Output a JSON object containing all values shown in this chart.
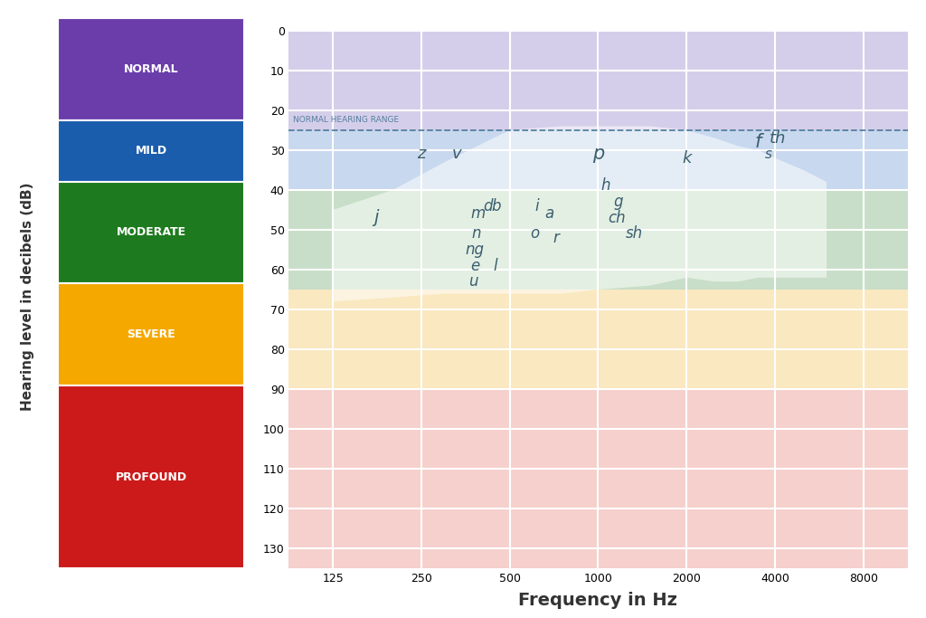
{
  "xlabel": "Frequency in Hz",
  "ylabel": "Hearing level in decibels (dB)",
  "freq_labels": [
    "125",
    "250",
    "500",
    "1000",
    "2000",
    "4000",
    "8000"
  ],
  "freq_values": [
    125,
    250,
    500,
    1000,
    2000,
    4000,
    8000
  ],
  "db_ticks": [
    0,
    10,
    20,
    30,
    40,
    50,
    60,
    70,
    80,
    90,
    100,
    110,
    120,
    130
  ],
  "db_max": 135,
  "hearing_bands": [
    {
      "label": "NORMAL",
      "db_min": 0,
      "db_max": 25,
      "color": "#6A3DAB",
      "bg": "#D4CEEA"
    },
    {
      "label": "MILD",
      "db_min": 25,
      "db_max": 40,
      "color": "#1A5DAD",
      "bg": "#C8D8EE"
    },
    {
      "label": "MODERATE",
      "db_min": 40,
      "db_max": 65,
      "color": "#1E7A1E",
      "bg": "#C8DEC8"
    },
    {
      "label": "SEVERE",
      "db_min": 65,
      "db_max": 90,
      "color": "#F5A800",
      "bg": "#FAE8C0"
    },
    {
      "label": "PROFOUND",
      "db_min": 90,
      "db_max": 135,
      "color": "#CC1A1A",
      "bg": "#F5D0CC"
    }
  ],
  "dashed_line_db": 25,
  "dashed_line_label": "NORMAL HEARING RANGE",
  "banana_top_x": [
    125,
    200,
    300,
    500,
    750,
    1000,
    1500,
    2000,
    2500,
    3000,
    3500,
    4000,
    5000,
    6000
  ],
  "banana_top_y": [
    45,
    40,
    33,
    25,
    24,
    24,
    24,
    25,
    27,
    29,
    30,
    32,
    35,
    38
  ],
  "banana_bot_x": [
    6000,
    5000,
    4000,
    3500,
    3000,
    2500,
    2000,
    1500,
    1000,
    750,
    500,
    300,
    200,
    125
  ],
  "banana_bot_y": [
    62,
    62,
    62,
    62,
    63,
    63,
    62,
    64,
    65,
    66,
    66,
    66,
    67,
    68
  ],
  "letters": [
    {
      "text": "z",
      "freq": 250,
      "db": 31,
      "size": 13
    },
    {
      "text": "v",
      "freq": 330,
      "db": 31,
      "size": 13
    },
    {
      "text": "j",
      "freq": 175,
      "db": 47,
      "size": 14
    },
    {
      "text": "m",
      "freq": 390,
      "db": 46,
      "size": 12
    },
    {
      "text": "d",
      "freq": 420,
      "db": 44,
      "size": 12
    },
    {
      "text": "b",
      "freq": 450,
      "db": 44,
      "size": 12
    },
    {
      "text": "n",
      "freq": 385,
      "db": 51,
      "size": 12
    },
    {
      "text": "ng",
      "freq": 380,
      "db": 55,
      "size": 12
    },
    {
      "text": "e",
      "freq": 380,
      "db": 59,
      "size": 12
    },
    {
      "text": "l",
      "freq": 445,
      "db": 59,
      "size": 12
    },
    {
      "text": "u",
      "freq": 375,
      "db": 63,
      "size": 12
    },
    {
      "text": "i",
      "freq": 620,
      "db": 44,
      "size": 12
    },
    {
      "text": "a",
      "freq": 680,
      "db": 46,
      "size": 12
    },
    {
      "text": "o",
      "freq": 610,
      "db": 51,
      "size": 12
    },
    {
      "text": "r",
      "freq": 720,
      "db": 52,
      "size": 12
    },
    {
      "text": "p",
      "freq": 1000,
      "db": 31,
      "size": 15
    },
    {
      "text": "h",
      "freq": 1060,
      "db": 39,
      "size": 12
    },
    {
      "text": "g",
      "freq": 1170,
      "db": 43,
      "size": 12
    },
    {
      "text": "ch",
      "freq": 1160,
      "db": 47,
      "size": 12
    },
    {
      "text": "sh",
      "freq": 1330,
      "db": 51,
      "size": 12
    },
    {
      "text": "k",
      "freq": 2000,
      "db": 32,
      "size": 13
    },
    {
      "text": "f",
      "freq": 3500,
      "db": 28,
      "size": 15
    },
    {
      "text": "s",
      "freq": 3800,
      "db": 31,
      "size": 11
    },
    {
      "text": "th",
      "freq": 4100,
      "db": 27,
      "size": 13
    }
  ],
  "label_color": "#3A5F6E",
  "bg_color": "#FFFFFF",
  "grid_color": "#FFFFFF",
  "xlabel_size": 14,
  "ylabel_size": 11,
  "band_label_size": 9,
  "tick_size": 9
}
